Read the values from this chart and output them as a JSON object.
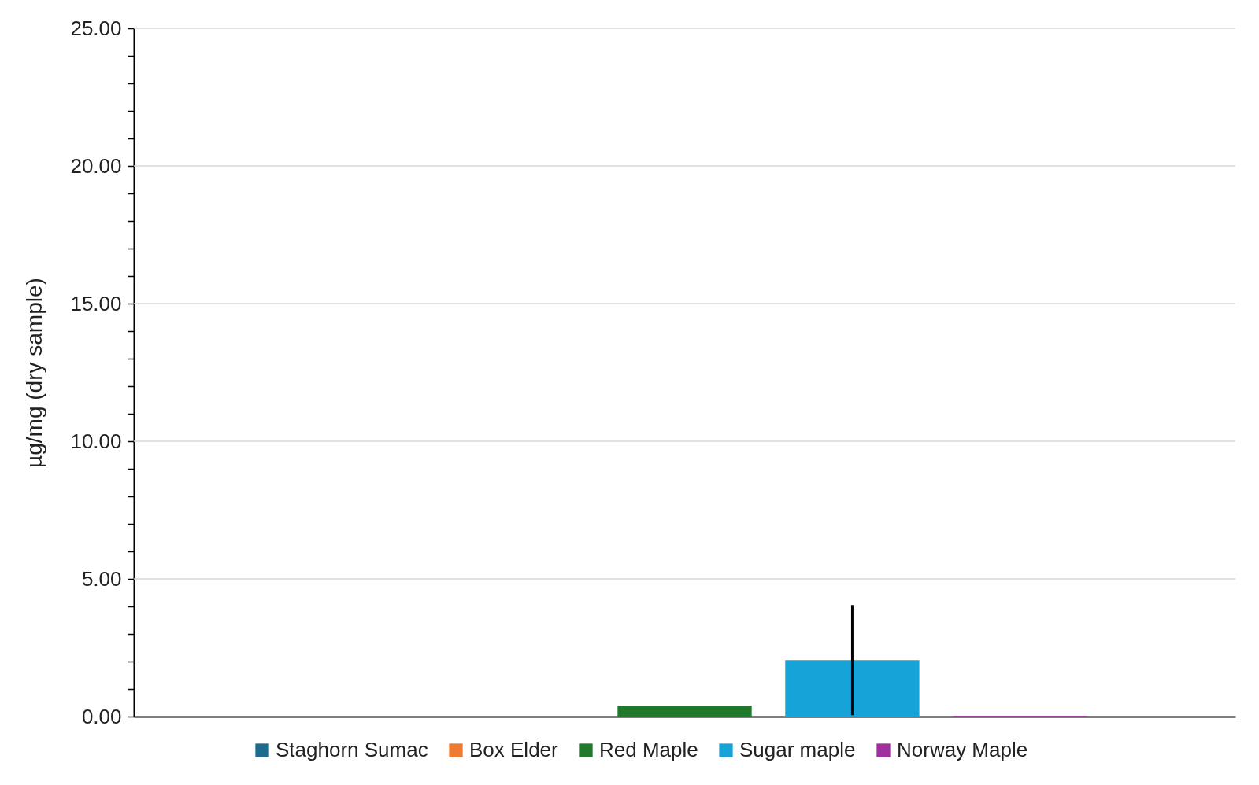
{
  "chart_data": {
    "type": "bar",
    "ylabel": "µg/mg (dry sample)",
    "categories": [
      null
    ],
    "tick_labels": "y",
    "series": [
      {
        "name": "Staghorn Sumac",
        "color": "#1f6b8e",
        "values": [
          0
        ]
      },
      {
        "name": "Box Elder",
        "color": "#ee7b30",
        "values": [
          0
        ]
      },
      {
        "name": "Red Maple",
        "color": "#1f7a2c",
        "values": [
          0.4
        ]
      },
      {
        "name": "Sugar maple",
        "color": "#16a4d8",
        "values": [
          2.05
        ],
        "errors": [
          2.0
        ]
      },
      {
        "name": "Norway Maple",
        "color": "#a0309e",
        "values": [
          0.02
        ]
      }
    ],
    "ylim": [
      0,
      25
    ],
    "yticks": [
      {
        "value": 0,
        "label": "0.00"
      },
      {
        "value": 1,
        "label": null
      },
      {
        "value": 2,
        "label": null
      },
      {
        "value": 3,
        "label": null
      },
      {
        "value": 4,
        "label": null
      },
      {
        "value": 5,
        "label": "5.00"
      },
      {
        "value": 6,
        "label": null
      },
      {
        "value": 7,
        "label": null
      },
      {
        "value": 8,
        "label": null
      },
      {
        "value": 9,
        "label": null
      },
      {
        "value": 10,
        "label": "10.00"
      },
      {
        "value": 11,
        "label": null
      },
      {
        "value": 12,
        "label": null
      },
      {
        "value": 13,
        "label": null
      },
      {
        "value": 14,
        "label": null
      },
      {
        "value": 15,
        "label": "15.00"
      },
      {
        "value": 16,
        "label": null
      },
      {
        "value": 17,
        "label": null
      },
      {
        "value": 18,
        "label": null
      },
      {
        "value": 19,
        "label": null
      },
      {
        "value": 20,
        "label": "20.00"
      },
      {
        "value": 21,
        "label": null
      },
      {
        "value": 22,
        "label": null
      },
      {
        "value": 23,
        "label": null
      },
      {
        "value": 24,
        "label": null
      },
      {
        "value": 25,
        "label": "25.00"
      }
    ],
    "grid": "y",
    "legend": "bottom"
  }
}
